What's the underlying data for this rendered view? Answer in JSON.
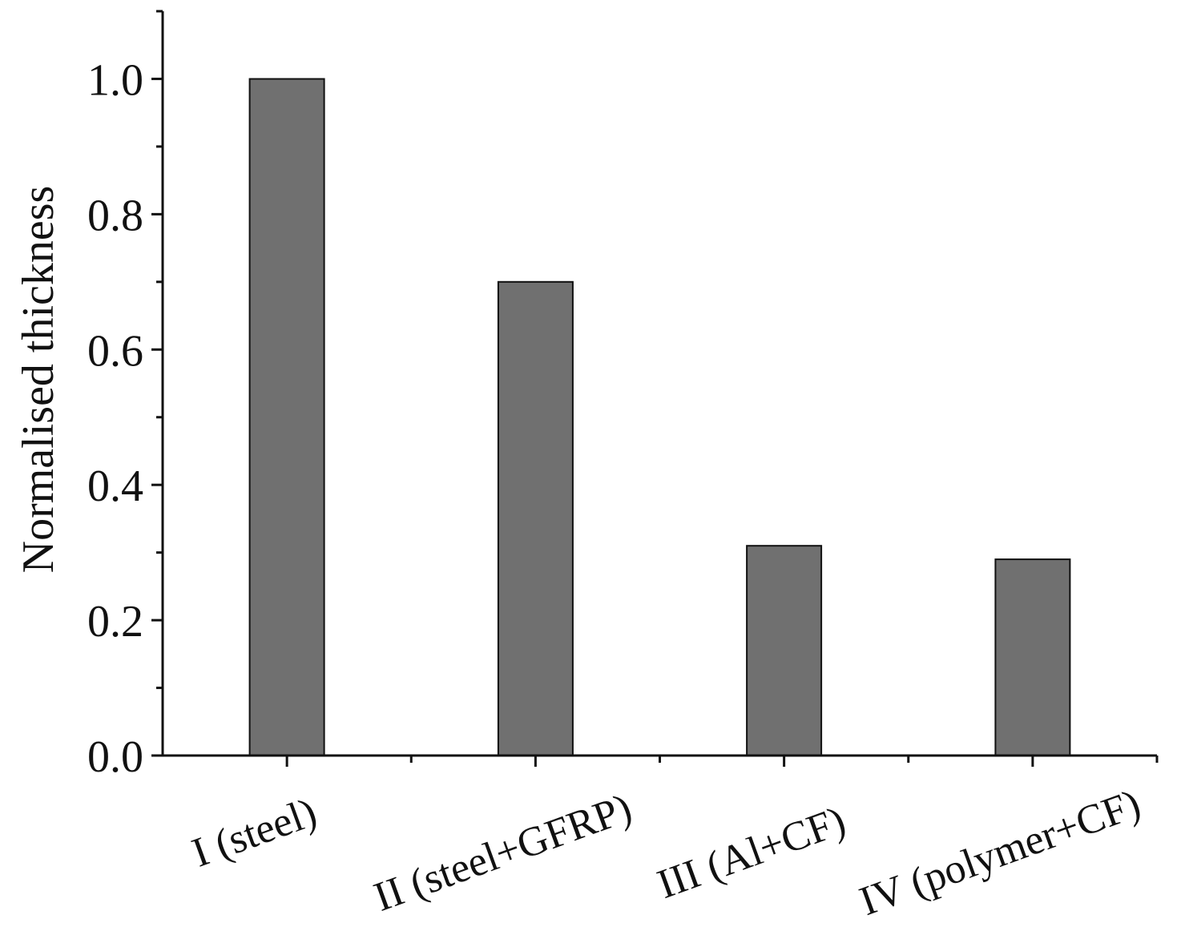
{
  "chart_data": {
    "type": "bar",
    "title": "",
    "xlabel": "",
    "ylabel": "Normalised thickness",
    "categories": [
      "I (steel)",
      "II (steel+GFRP)",
      "III (Al+CF)",
      "IV (polymer+CF)"
    ],
    "values": [
      1.0,
      0.7,
      0.31,
      0.29
    ],
    "ylim": [
      0,
      1.1
    ],
    "yticks": [
      0.0,
      0.2,
      0.4,
      0.6,
      0.8,
      1.0
    ],
    "ytick_labels": [
      "0.0",
      "0.2",
      "0.4",
      "0.6",
      "0.8",
      "1.0"
    ],
    "grid": false,
    "legend": "none",
    "bar_color": "#707070",
    "axis_color": "#111111"
  }
}
